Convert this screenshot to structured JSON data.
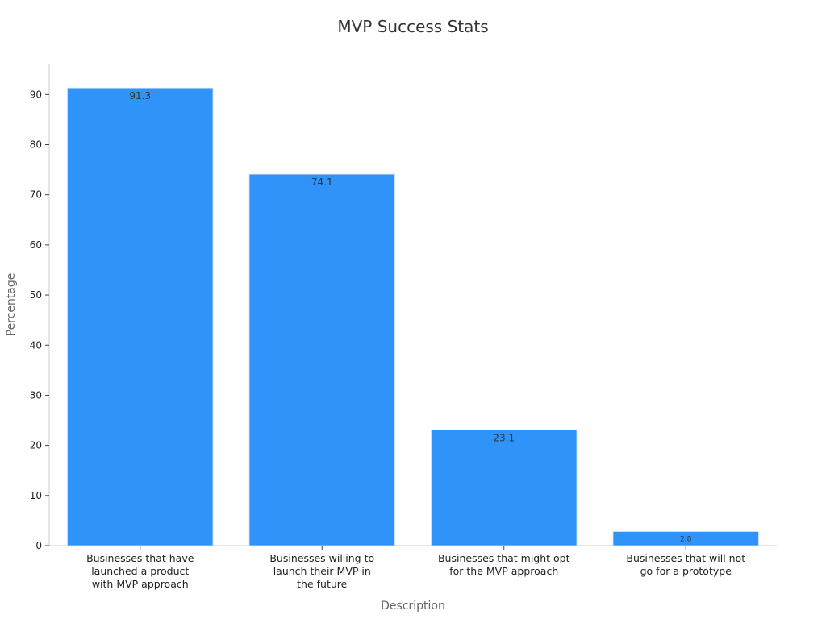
{
  "chart_data": {
    "type": "bar",
    "title": "MVP Success Stats",
    "xlabel": "Description",
    "ylabel": "Percentage",
    "categories": [
      [
        "Businesses that have",
        "launched a product",
        "with MVP approach"
      ],
      [
        "Businesses willing to",
        "launch their MVP in",
        "the future"
      ],
      [
        "Businesses that might opt",
        "for the MVP approach"
      ],
      [
        "Businesses that will not",
        "go for a prototype"
      ]
    ],
    "values": [
      91.3,
      74.1,
      23.1,
      2.8
    ],
    "value_labels": [
      "91.3",
      "74.1",
      "23.1",
      "2.8"
    ],
    "yticks": [
      0,
      10,
      20,
      30,
      40,
      50,
      60,
      70,
      80,
      90
    ],
    "ylim": [
      0,
      96
    ],
    "grid": false,
    "legend": "none",
    "colors": {
      "bar": "#2f93f9",
      "axis": "#cccccc"
    }
  }
}
